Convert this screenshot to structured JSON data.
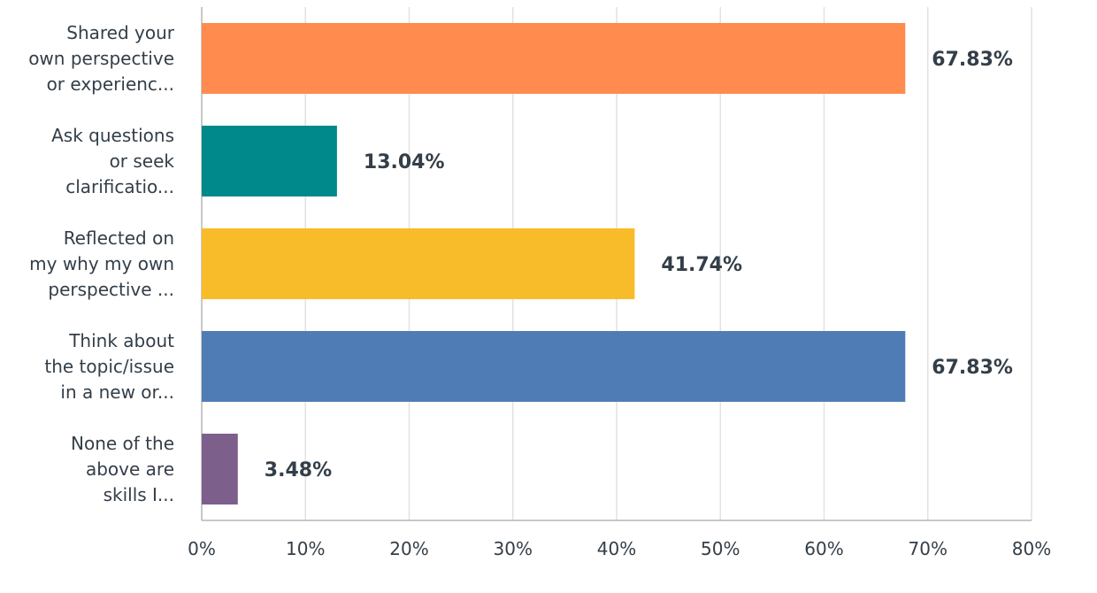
{
  "chart_data": {
    "type": "bar",
    "orientation": "horizontal",
    "categories": [
      [
        "Shared your",
        "own perspective",
        "or experienc..."
      ],
      [
        "Ask questions",
        "or seek",
        "clarificatio..."
      ],
      [
        "Reflected on",
        "my why my own",
        "perspective ..."
      ],
      [
        "Think about",
        "the topic/issue",
        "in a new or..."
      ],
      [
        "None of the",
        "above are",
        "skills I..."
      ]
    ],
    "values": [
      67.83,
      13.04,
      41.74,
      67.83,
      3.48
    ],
    "value_labels": [
      "67.83%",
      "13.04%",
      "41.74%",
      "67.83%",
      "3.48%"
    ],
    "colors": [
      "#FF8B4F",
      "#00898A",
      "#F8BC2B",
      "#507CB6",
      "#7D5F8C"
    ],
    "xlim": [
      0,
      80
    ],
    "xticks": [
      0,
      10,
      20,
      30,
      40,
      50,
      60,
      70,
      80
    ],
    "xtick_labels": [
      "0%",
      "10%",
      "20%",
      "30%",
      "40%",
      "50%",
      "60%",
      "70%",
      "80%"
    ],
    "grid": true,
    "title": "",
    "xlabel": "",
    "ylabel": ""
  }
}
